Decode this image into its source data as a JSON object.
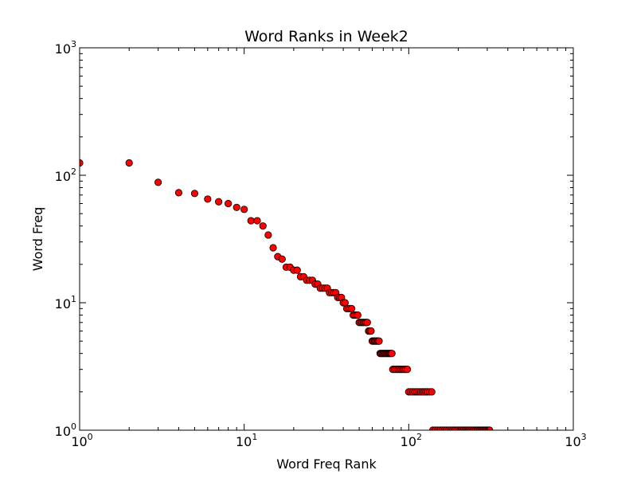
{
  "chart_data": {
    "type": "scatter",
    "title": "Word Ranks in Week2",
    "xlabel": "Word Freq Rank",
    "ylabel": "Word Freq",
    "xscale": "log",
    "yscale": "log",
    "xlim": [
      1,
      1000
    ],
    "ylim": [
      1,
      1000
    ],
    "grid": false,
    "marker_color": "#ff0000",
    "marker_edge_color": "#000000",
    "x_ticks": [
      {
        "value": 1,
        "base": "10",
        "exp": "0"
      },
      {
        "value": 10,
        "base": "10",
        "exp": "1"
      },
      {
        "value": 100,
        "base": "10",
        "exp": "2"
      },
      {
        "value": 1000,
        "base": "10",
        "exp": "3"
      }
    ],
    "y_ticks": [
      {
        "value": 1,
        "base": "10",
        "exp": "0"
      },
      {
        "value": 10,
        "base": "10",
        "exp": "1"
      },
      {
        "value": 100,
        "base": "10",
        "exp": "2"
      },
      {
        "value": 1000,
        "base": "10",
        "exp": "3"
      }
    ],
    "points": [
      [
        1,
        125
      ],
      [
        2,
        125
      ],
      [
        3,
        88
      ],
      [
        4,
        73
      ],
      [
        5,
        72
      ],
      [
        6,
        65
      ],
      [
        7,
        62
      ],
      [
        8,
        60
      ],
      [
        9,
        56
      ],
      [
        10,
        54
      ],
      [
        11,
        44
      ],
      [
        12,
        44
      ],
      [
        13,
        40
      ],
      [
        14,
        34
      ],
      [
        15,
        27
      ],
      [
        16,
        23
      ],
      [
        17,
        22
      ],
      [
        18,
        19
      ],
      [
        19,
        19
      ],
      [
        20,
        18
      ],
      [
        21,
        18
      ],
      [
        22,
        16
      ],
      [
        23,
        16
      ],
      [
        24,
        15
      ],
      [
        25,
        15
      ],
      [
        26,
        15
      ],
      [
        27,
        14
      ],
      [
        28,
        14
      ],
      [
        29,
        13
      ],
      [
        30,
        13
      ],
      [
        31,
        13
      ],
      [
        32,
        13
      ],
      [
        33,
        12
      ],
      [
        34,
        12
      ],
      [
        35,
        12
      ],
      [
        36,
        12
      ],
      [
        37,
        11
      ],
      [
        38,
        11
      ],
      [
        39,
        11
      ],
      [
        40,
        10
      ],
      [
        41,
        10
      ],
      [
        42,
        9
      ],
      [
        43,
        9
      ],
      [
        44,
        9
      ],
      [
        45,
        9
      ],
      [
        46,
        8
      ],
      [
        47,
        8
      ],
      [
        48,
        8
      ],
      [
        49,
        8
      ],
      [
        50,
        7
      ],
      [
        51,
        7
      ],
      [
        52,
        7
      ],
      [
        53,
        7
      ],
      [
        54,
        7
      ],
      [
        55,
        7
      ],
      [
        56,
        7
      ],
      [
        57,
        6
      ],
      [
        58,
        6
      ],
      [
        59,
        6
      ],
      [
        60,
        5
      ],
      [
        61,
        5
      ],
      [
        62,
        5
      ],
      [
        63,
        5
      ],
      [
        64,
        5
      ],
      [
        65,
        5
      ],
      [
        66,
        5
      ],
      [
        67,
        4
      ],
      [
        68,
        4
      ],
      [
        69,
        4
      ],
      [
        70,
        4
      ],
      [
        71,
        4
      ],
      [
        72,
        4
      ],
      [
        73,
        4
      ],
      [
        74,
        4
      ],
      [
        75,
        4
      ],
      [
        76,
        4
      ],
      [
        77,
        4
      ],
      [
        78,
        4
      ],
      [
        79,
        4
      ],
      [
        80,
        3
      ],
      [
        82,
        3
      ],
      [
        84,
        3
      ],
      [
        86,
        3
      ],
      [
        88,
        3
      ],
      [
        90,
        3
      ],
      [
        92,
        3
      ],
      [
        94,
        3
      ],
      [
        96,
        3
      ],
      [
        98,
        3
      ],
      [
        100,
        2
      ],
      [
        103,
        2
      ],
      [
        106,
        2
      ],
      [
        109,
        2
      ],
      [
        112,
        2
      ],
      [
        115,
        2
      ],
      [
        118,
        2
      ],
      [
        121,
        2
      ],
      [
        124,
        2
      ],
      [
        127,
        2
      ],
      [
        130,
        2
      ],
      [
        134,
        2
      ],
      [
        138,
        2
      ],
      [
        140,
        1
      ],
      [
        145,
        1
      ],
      [
        150,
        1
      ],
      [
        155,
        1
      ],
      [
        160,
        1
      ],
      [
        165,
        1
      ],
      [
        170,
        1
      ],
      [
        175,
        1
      ],
      [
        180,
        1
      ],
      [
        185,
        1
      ],
      [
        190,
        1
      ],
      [
        195,
        1
      ],
      [
        200,
        1
      ],
      [
        205,
        1
      ],
      [
        210,
        1
      ],
      [
        215,
        1
      ],
      [
        220,
        1
      ],
      [
        225,
        1
      ],
      [
        230,
        1
      ],
      [
        235,
        1
      ],
      [
        240,
        1
      ],
      [
        245,
        1
      ],
      [
        250,
        1
      ],
      [
        255,
        1
      ],
      [
        260,
        1
      ],
      [
        265,
        1
      ],
      [
        270,
        1
      ],
      [
        275,
        1
      ],
      [
        280,
        1
      ],
      [
        285,
        1
      ],
      [
        290,
        1
      ],
      [
        295,
        1
      ],
      [
        300,
        1
      ],
      [
        305,
        1
      ],
      [
        310,
        1
      ]
    ]
  }
}
